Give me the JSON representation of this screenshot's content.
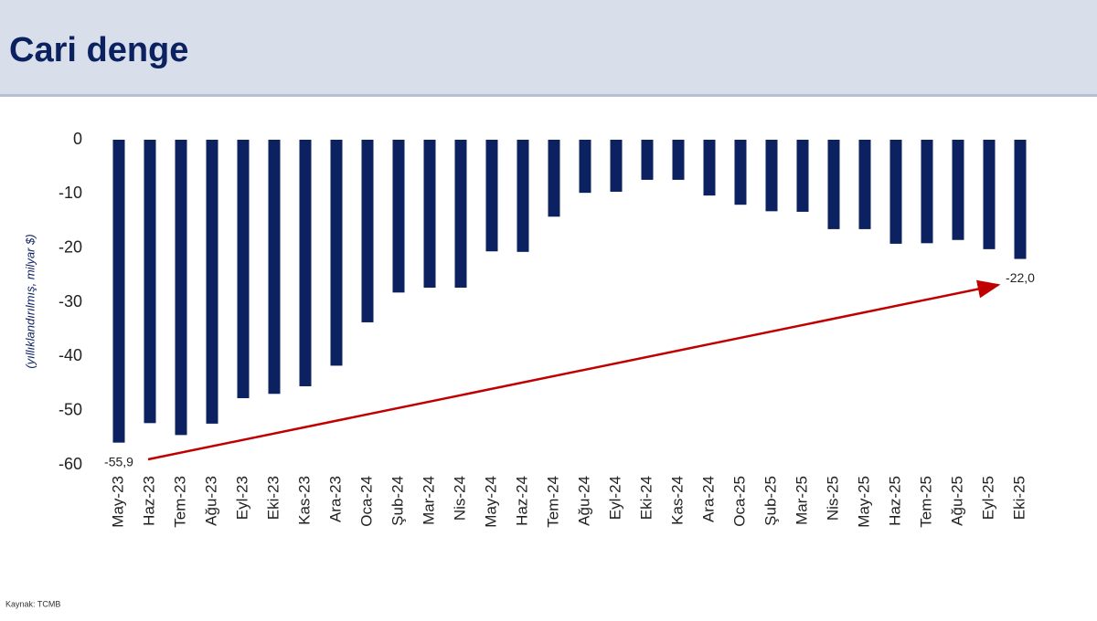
{
  "chart_data": {
    "type": "bar",
    "title": "Cari denge",
    "y_label": "(yıllıklandırılmış, milyar $)",
    "source": "Kaynak: TCMB",
    "categories": [
      "May-23",
      "Haz-23",
      "Tem-23",
      "Ağu-23",
      "Eyl-23",
      "Eki-23",
      "Kas-23",
      "Ara-23",
      "Oca-24",
      "Şub-24",
      "Mar-24",
      "Nis-24",
      "May-24",
      "Haz-24",
      "Tem-24",
      "Ağu-24",
      "Eyl-24",
      "Eki-24",
      "Kas-24",
      "Ara-24",
      "Oca-25",
      "Şub-25",
      "Mar-25",
      "Nis-25",
      "May-25",
      "Haz-25",
      "Tem-25",
      "Ağu-25",
      "Eyl-25",
      "Eki-25"
    ],
    "values": [
      -55.9,
      -52.3,
      -54.5,
      -52.4,
      -47.7,
      -46.9,
      -45.5,
      -41.7,
      -33.7,
      -28.2,
      -27.3,
      -27.3,
      -20.6,
      -20.7,
      -14.2,
      -9.8,
      -9.6,
      -7.4,
      -7.4,
      -10.3,
      -12.0,
      -13.2,
      -13.3,
      -16.5,
      -16.5,
      -19.2,
      -19.1,
      -18.5,
      -20.2,
      -22.0
    ],
    "value_labels": [
      "-55,9",
      null,
      null,
      null,
      null,
      null,
      null,
      null,
      null,
      null,
      null,
      null,
      null,
      null,
      null,
      null,
      null,
      null,
      null,
      null,
      null,
      null,
      null,
      null,
      null,
      null,
      null,
      null,
      null,
      "-22,0"
    ],
    "color": "#0b2160",
    "ylim": [
      -60,
      0
    ],
    "yticks": [
      0,
      -10,
      -20,
      -30,
      -40,
      -50,
      -60
    ],
    "grid": false
  }
}
